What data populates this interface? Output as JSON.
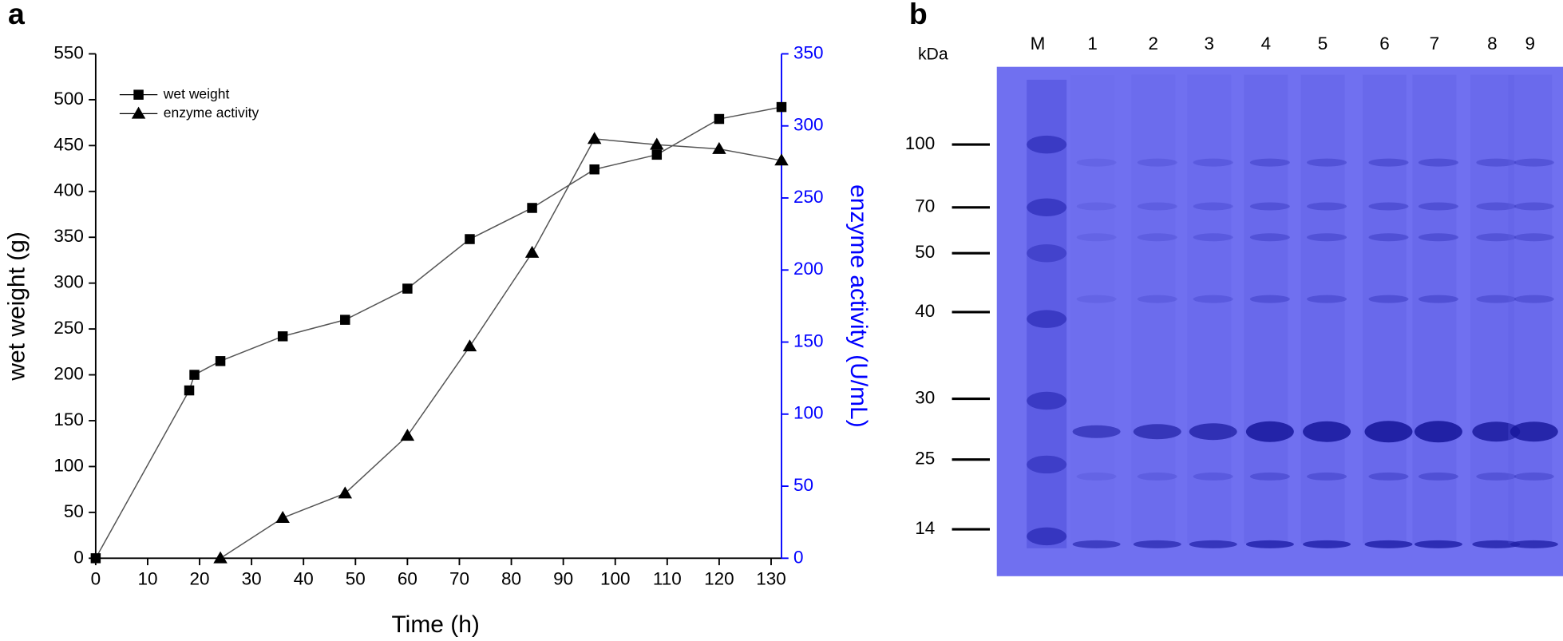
{
  "chart_data": {
    "type": "line",
    "panel_label": "a",
    "x_label": "Time (h)",
    "y_label": "wet weight (g)",
    "y2_label": "enzyme activity (U/mL)",
    "x": [
      0,
      18,
      19,
      24,
      36,
      48,
      60,
      72,
      84,
      96,
      108,
      120,
      132
    ],
    "xlim": [
      0,
      132
    ],
    "xticks": [
      0,
      10,
      20,
      30,
      40,
      50,
      60,
      70,
      80,
      90,
      100,
      110,
      120,
      130
    ],
    "ylim": [
      0,
      550
    ],
    "yticks": [
      0,
      50,
      100,
      150,
      200,
      250,
      300,
      350,
      400,
      450,
      500,
      550
    ],
    "y2lim": [
      0,
      350
    ],
    "y2ticks": [
      0,
      50,
      100,
      150,
      200,
      250,
      300,
      350
    ],
    "y2_color": "#0000ff",
    "legend": "upper left",
    "series": [
      {
        "name": "wet weight",
        "color": "#000000",
        "marker": "square",
        "values": [
          0,
          183,
          200,
          215,
          242,
          260,
          294,
          348,
          382,
          424,
          440,
          479,
          492
        ]
      },
      {
        "name": "enzyme activity",
        "color": "#000000",
        "marker": "triangle",
        "axis": "y2",
        "values": [
          null,
          null,
          null,
          0,
          28,
          45,
          85,
          147,
          212,
          291,
          287,
          284,
          276
        ]
      }
    ]
  },
  "gel": {
    "panel_label": "b",
    "unit_label": "kDa",
    "lanes": [
      "M",
      "1",
      "2",
      "3",
      "4",
      "5",
      "6",
      "7",
      "8",
      "9"
    ],
    "markers": [
      "100",
      "70",
      "50",
      "40",
      "30",
      "25",
      "14"
    ]
  }
}
